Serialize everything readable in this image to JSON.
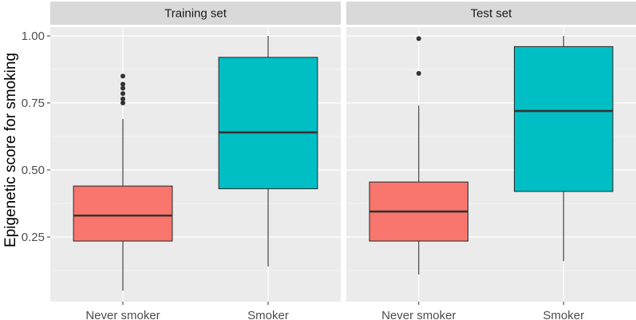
{
  "chart_data": {
    "type": "boxplot",
    "ylabel": "Epigenetic score for smoking",
    "xlabel": "",
    "ylim": [
      0.0,
      1.05
    ],
    "yticks": [
      0.25,
      0.5,
      0.75,
      1.0
    ],
    "ytick_labels": [
      "0.25",
      "0.50",
      "0.75",
      "1.00"
    ],
    "categories": [
      "Never smoker",
      "Smoker"
    ],
    "fill_colors": {
      "Never smoker": "#F8766D",
      "Smoker": "#00BFC4"
    },
    "panels": [
      {
        "title": "Training set",
        "boxes": [
          {
            "category": "Never smoker",
            "min": 0.05,
            "q1": 0.235,
            "median": 0.33,
            "q3": 0.44,
            "max": 0.69,
            "outliers": [
              0.75,
              0.765,
              0.785,
              0.805,
              0.82,
              0.85
            ]
          },
          {
            "category": "Smoker",
            "min": 0.14,
            "q1": 0.43,
            "median": 0.64,
            "q3": 0.92,
            "max": 1.0,
            "outliers": []
          }
        ]
      },
      {
        "title": "Test set",
        "boxes": [
          {
            "category": "Never smoker",
            "min": 0.11,
            "q1": 0.235,
            "median": 0.345,
            "q3": 0.455,
            "max": 0.74,
            "outliers": [
              0.86,
              0.99
            ]
          },
          {
            "category": "Smoker",
            "min": 0.16,
            "q1": 0.42,
            "median": 0.72,
            "q3": 0.96,
            "max": 1.0,
            "outliers": []
          }
        ]
      }
    ],
    "colors": {
      "panel_bg": "#EBEBEB",
      "strip_bg": "#D9D9D9",
      "grid": "#FFFFFF"
    },
    "grid": true,
    "legend": "none"
  }
}
